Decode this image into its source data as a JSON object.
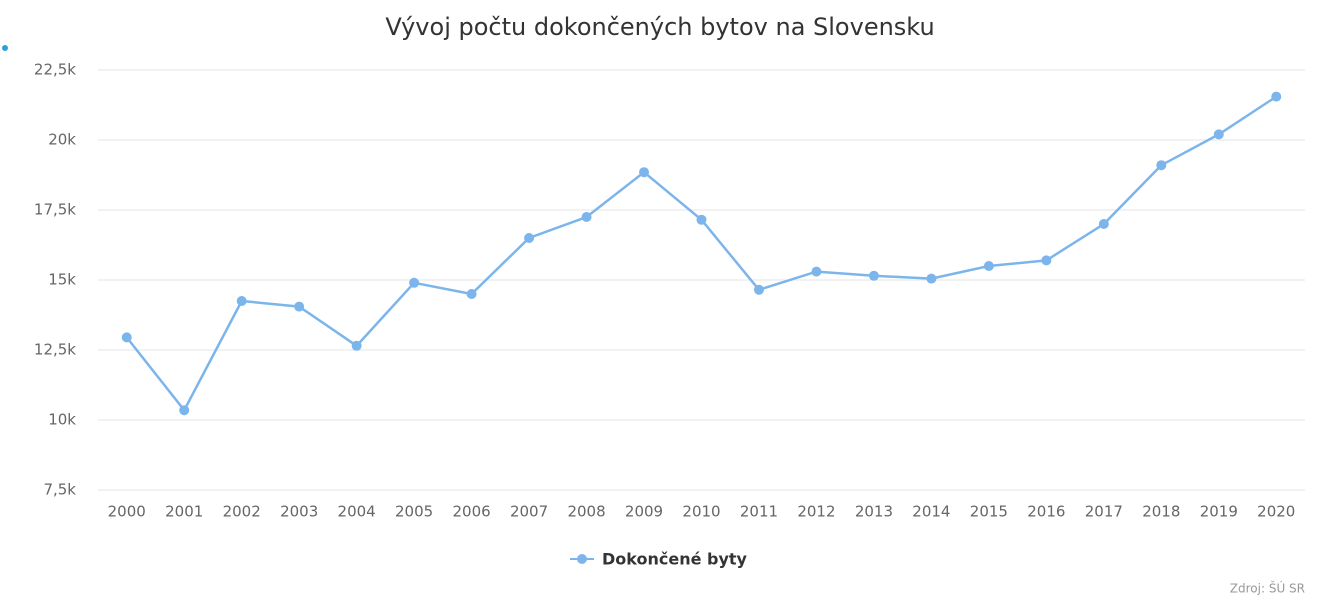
{
  "chart_data": {
    "type": "line",
    "title": "Vývoj počtu dokončených bytov na Slovensku",
    "categories": [
      "2000",
      "2001",
      "2002",
      "2003",
      "2004",
      "2005",
      "2006",
      "2007",
      "2008",
      "2009",
      "2010",
      "2011",
      "2012",
      "2013",
      "2014",
      "2015",
      "2016",
      "2017",
      "2018",
      "2019",
      "2020"
    ],
    "series": [
      {
        "name": "Dokončené byty",
        "color": "#7cb5ec",
        "values": [
          12950,
          10350,
          14250,
          14050,
          12650,
          14900,
          14500,
          16500,
          17250,
          18850,
          17150,
          14650,
          15300,
          15150,
          15050,
          15500,
          15700,
          17000,
          19100,
          20200,
          21550
        ]
      }
    ],
    "ylim": [
      7500,
      22500
    ],
    "yticks": [
      {
        "value": 7500,
        "label": "7,5k"
      },
      {
        "value": 10000,
        "label": "10k"
      },
      {
        "value": 12500,
        "label": "12,5k"
      },
      {
        "value": 15000,
        "label": "15k"
      },
      {
        "value": 17500,
        "label": "17,5k"
      },
      {
        "value": 20000,
        "label": "20k"
      },
      {
        "value": 22500,
        "label": "22,5k"
      }
    ],
    "grid": true,
    "credits": "Zdroj: ŠÚ SR"
  }
}
